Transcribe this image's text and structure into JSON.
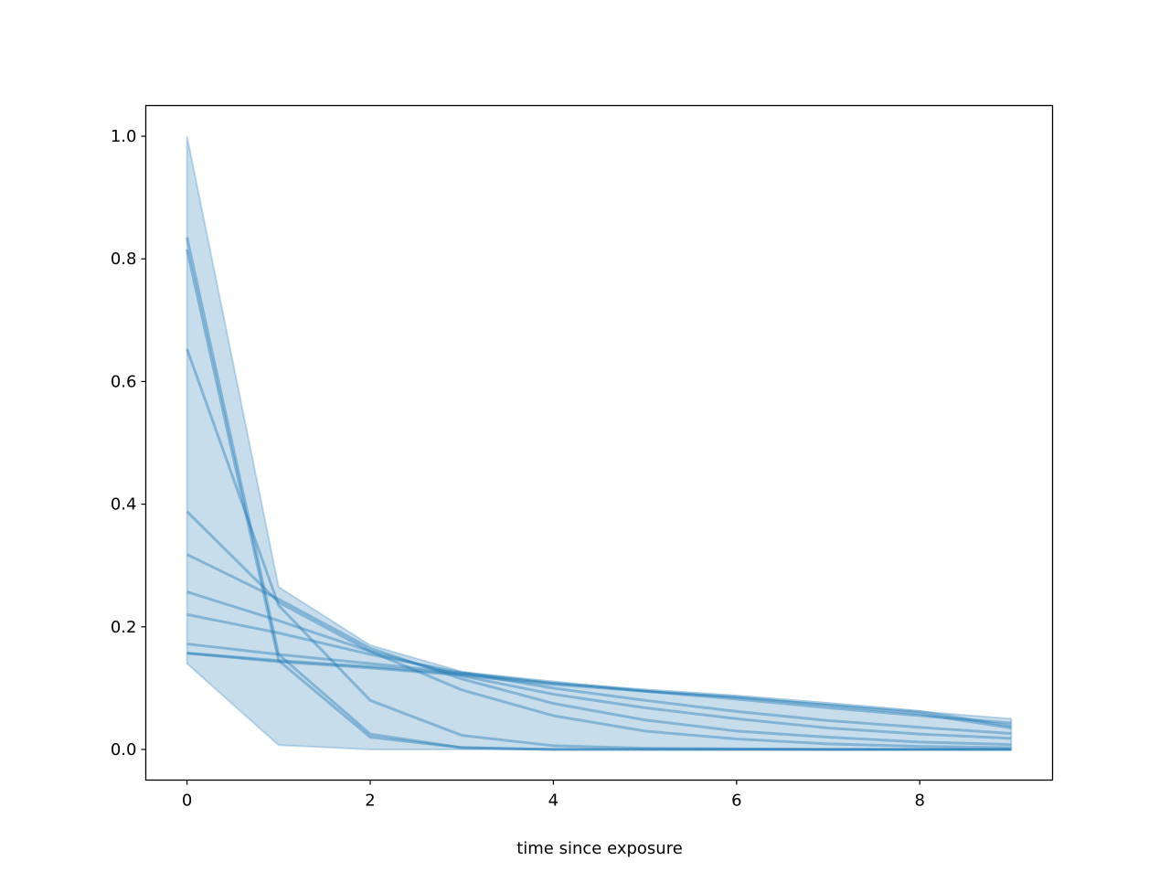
{
  "chart_data": {
    "type": "line",
    "title": "",
    "xlabel": "time since exposure",
    "ylabel": "",
    "xlim": [
      -0.45,
      9.45
    ],
    "ylim": [
      -0.05,
      1.05
    ],
    "xticks": [
      0,
      2,
      4,
      6,
      8
    ],
    "xtick_labels": [
      "0",
      "2",
      "4",
      "6",
      "8"
    ],
    "yticks": [
      0.0,
      0.2,
      0.4,
      0.6,
      0.8,
      1.0
    ],
    "ytick_labels": [
      "0.0",
      "0.2",
      "0.4",
      "0.6",
      "0.8",
      "1.0"
    ],
    "grid": false,
    "color": "#1f77b4",
    "x": [
      0,
      1,
      2,
      3,
      4,
      5,
      6,
      7,
      8,
      9
    ],
    "band": {
      "upper": [
        1.0,
        0.265,
        0.17,
        0.127,
        0.108,
        0.095,
        0.085,
        0.073,
        0.062,
        0.05
      ],
      "lower": [
        0.14,
        0.007,
        0.0,
        0.0,
        0.0,
        0.0,
        0.0,
        0.0,
        0.0,
        0.0
      ]
    },
    "series": [
      {
        "values": [
          0.835,
          0.155,
          0.025,
          0.003,
          0.0,
          0.0,
          0.0,
          0.0,
          0.0,
          0.0
        ]
      },
      {
        "values": [
          0.815,
          0.145,
          0.02,
          0.003,
          0.0,
          0.0,
          0.0,
          0.0,
          0.0,
          0.0
        ]
      },
      {
        "values": [
          0.653,
          0.235,
          0.08,
          0.023,
          0.006,
          0.002,
          0.001,
          0.0,
          0.0,
          0.0
        ]
      },
      {
        "values": [
          0.388,
          0.24,
          0.16,
          0.097,
          0.055,
          0.03,
          0.017,
          0.009,
          0.005,
          0.003
        ]
      },
      {
        "values": [
          0.318,
          0.245,
          0.165,
          0.115,
          0.075,
          0.048,
          0.03,
          0.02,
          0.012,
          0.008
        ]
      },
      {
        "values": [
          0.257,
          0.21,
          0.16,
          0.12,
          0.09,
          0.068,
          0.05,
          0.035,
          0.025,
          0.018
        ]
      },
      {
        "values": [
          0.22,
          0.19,
          0.155,
          0.125,
          0.1,
          0.08,
          0.062,
          0.047,
          0.036,
          0.026
        ]
      },
      {
        "values": [
          0.172,
          0.155,
          0.14,
          0.125,
          0.11,
          0.095,
          0.082,
          0.068,
          0.055,
          0.043
        ]
      },
      {
        "values": [
          0.157,
          0.145,
          0.135,
          0.123,
          0.108,
          0.097,
          0.087,
          0.075,
          0.062,
          0.038
        ]
      },
      {
        "values": [
          0.157,
          0.143,
          0.133,
          0.121,
          0.106,
          0.095,
          0.085,
          0.072,
          0.058,
          0.035
        ]
      }
    ]
  }
}
